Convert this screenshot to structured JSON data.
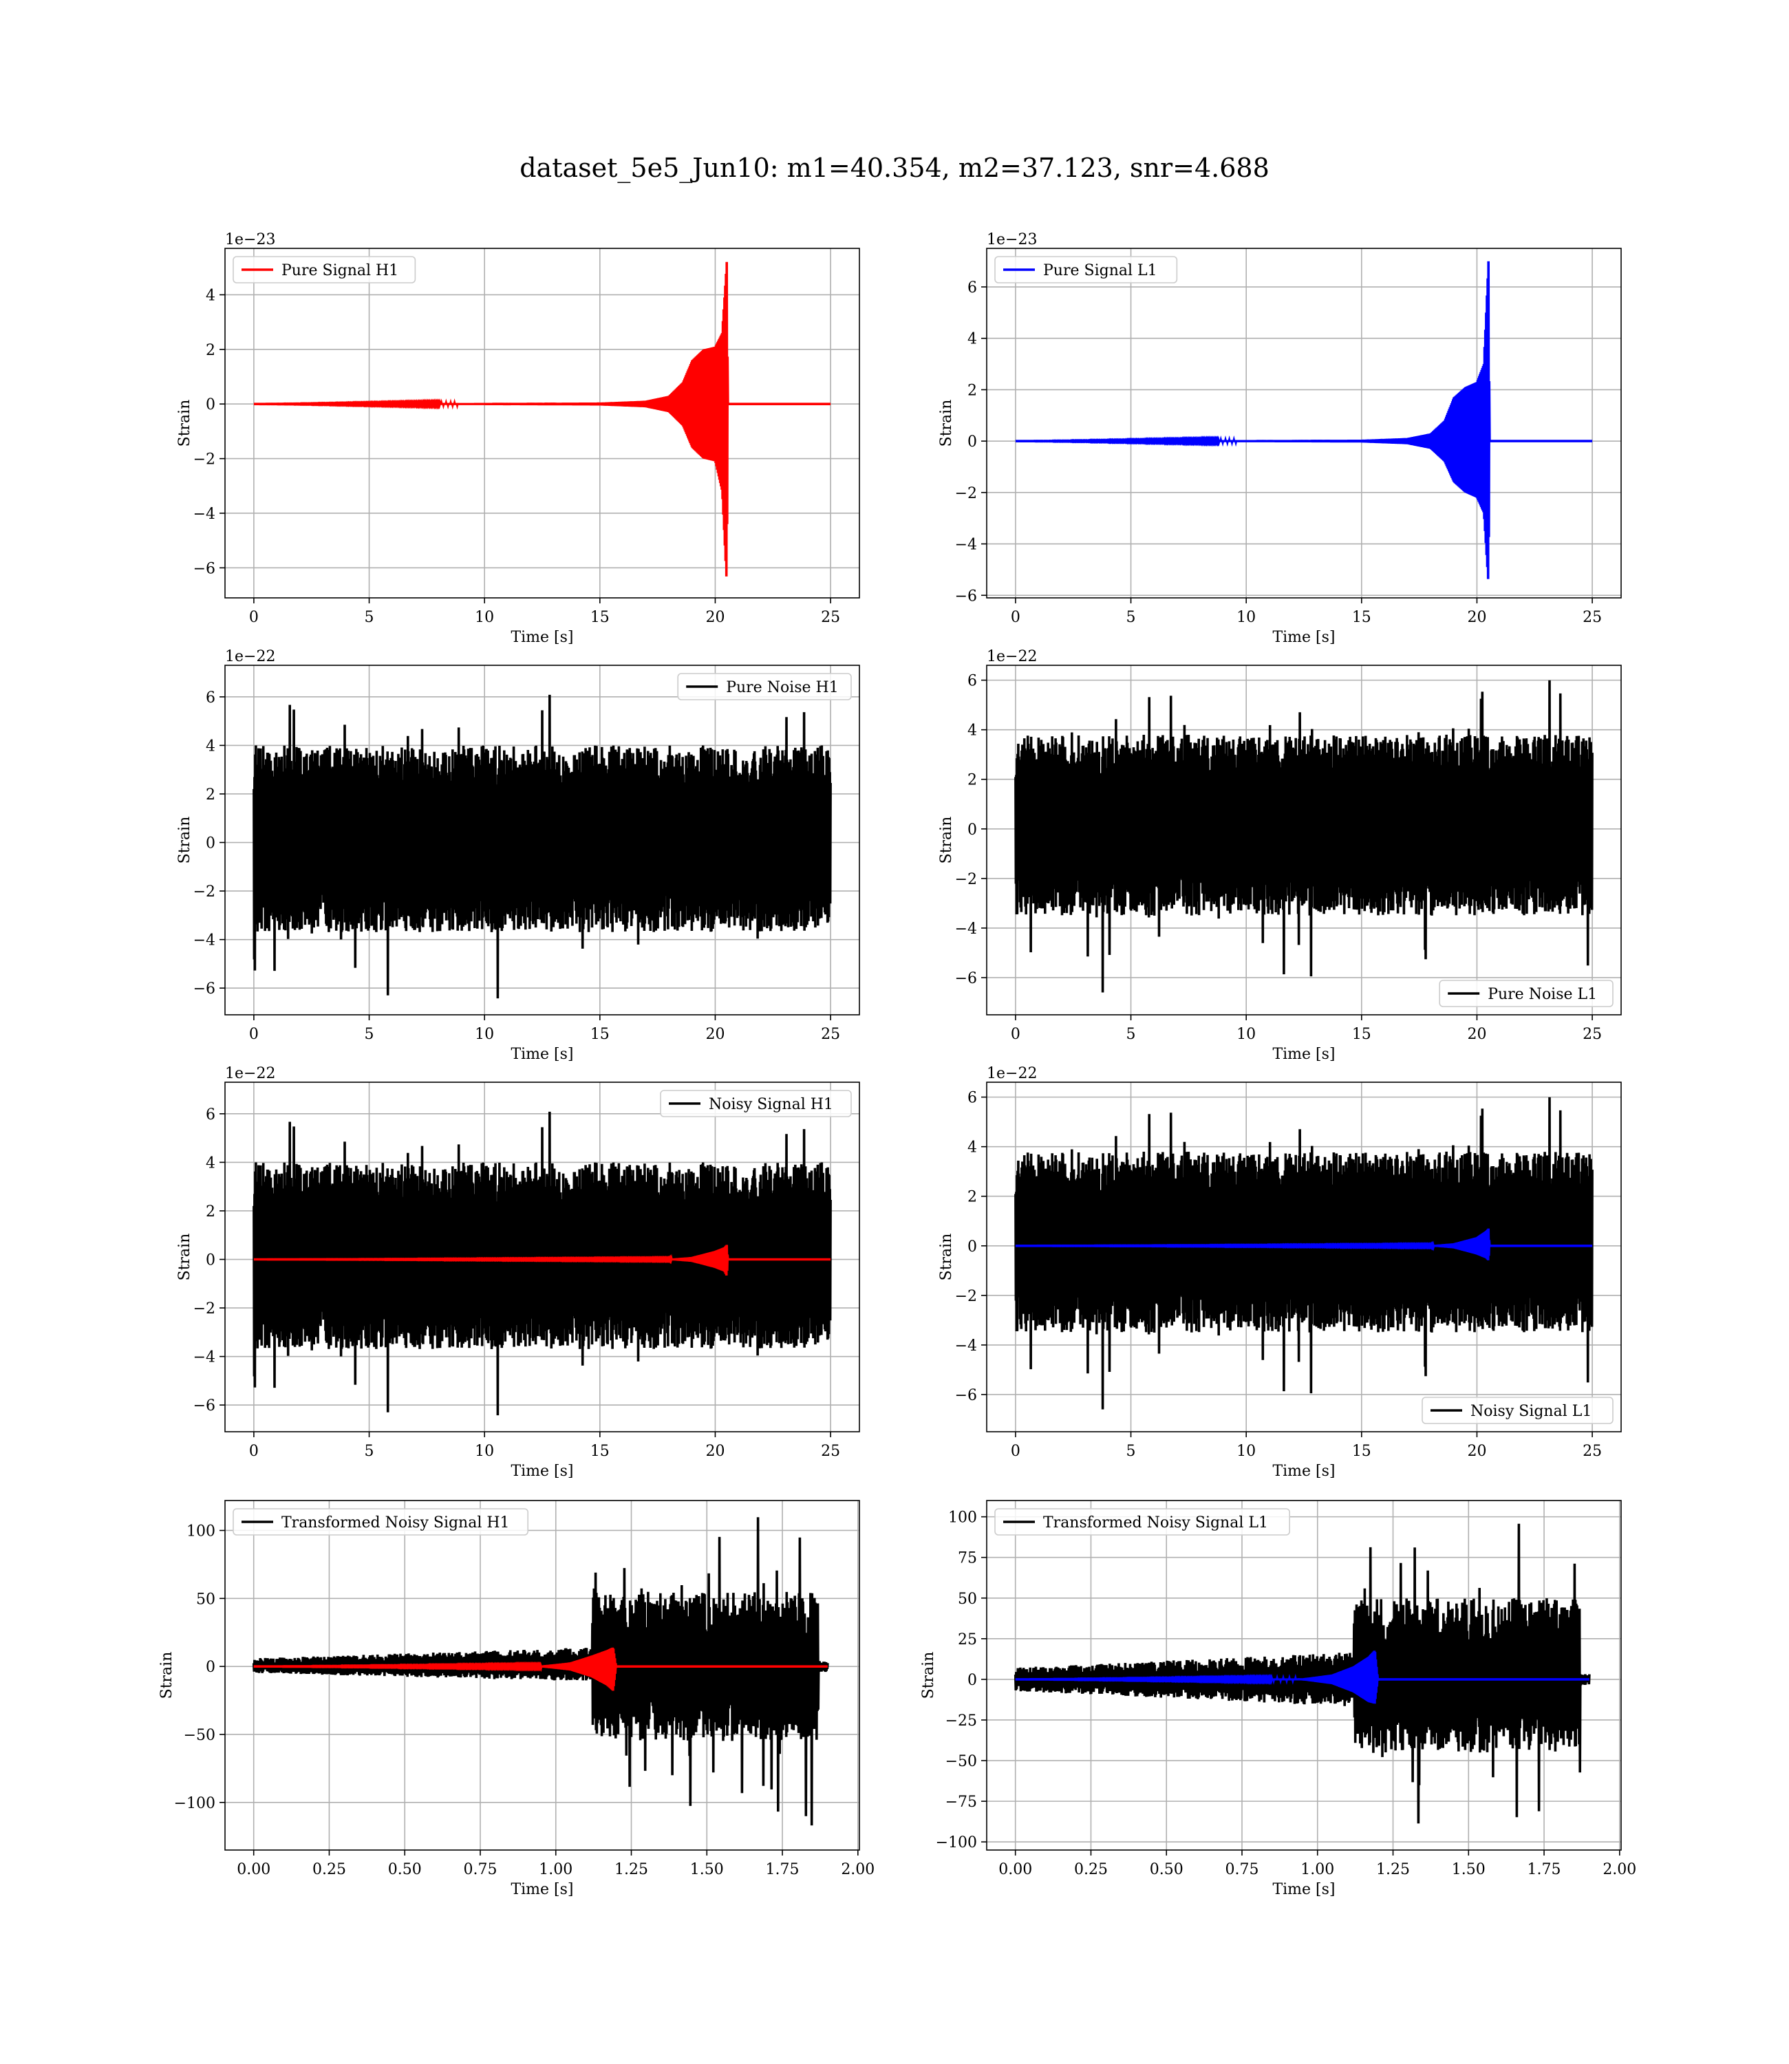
{
  "figure": {
    "title": "dataset_5e5_Jun10: m1=40.354, m2=37.123, snr=4.688"
  },
  "colors": {
    "h1_signal": "#ff0000",
    "l1_signal": "#0000ff",
    "noise": "#000000",
    "grid": "#b0b0b0"
  },
  "chart_data": [
    {
      "id": "pure-signal-h1",
      "type": "line",
      "xlabel": "Time [s]",
      "ylabel": "Strain",
      "offset_label": "1e−23",
      "xlim": [
        -1.25,
        26.25
      ],
      "ylim": [
        -7.1,
        5.7
      ],
      "xticks": [
        0,
        5,
        10,
        15,
        20,
        25
      ],
      "xtick_labels": [
        "0",
        "5",
        "10",
        "15",
        "20",
        "25"
      ],
      "yticks": [
        -6,
        -4,
        -2,
        0,
        2,
        4
      ],
      "ytick_labels": [
        "−6",
        "−4",
        "−2",
        "0",
        "2",
        "4"
      ],
      "legend": {
        "position": "upper left"
      },
      "series": [
        {
          "name": "Pure Signal H1",
          "color": "#ff0000",
          "kind": "chirp",
          "envelope_t": [
            0,
            15,
            17,
            18,
            18.6,
            19,
            19.5,
            20,
            20.3,
            20.5,
            20.55,
            25
          ],
          "envelope_max": [
            0.0,
            0.05,
            0.12,
            0.3,
            0.8,
            1.6,
            2.0,
            2.1,
            2.6,
            5.2,
            0.0,
            0.0
          ],
          "envelope_min": [
            0.0,
            -0.05,
            -0.12,
            -0.3,
            -0.8,
            -1.6,
            -2.0,
            -2.1,
            -3.2,
            -6.6,
            0.0,
            0.0
          ]
        }
      ]
    },
    {
      "id": "pure-signal-l1",
      "type": "line",
      "xlabel": "Time [s]",
      "ylabel": "Strain",
      "offset_label": "1e−23",
      "xlim": [
        -1.25,
        26.25
      ],
      "ylim": [
        -6.1,
        7.5
      ],
      "xticks": [
        0,
        5,
        10,
        15,
        20,
        25
      ],
      "xtick_labels": [
        "0",
        "5",
        "10",
        "15",
        "20",
        "25"
      ],
      "yticks": [
        -6,
        -4,
        -2,
        0,
        2,
        4,
        6
      ],
      "ytick_labels": [
        "−6",
        "−4",
        "−2",
        "0",
        "2",
        "4",
        "6"
      ],
      "legend": {
        "position": "upper left"
      },
      "series": [
        {
          "name": "Pure Signal L1",
          "color": "#0000ff",
          "kind": "chirp",
          "envelope_t": [
            0,
            15,
            17,
            18,
            18.6,
            19,
            19.5,
            20,
            20.3,
            20.5,
            20.55,
            25
          ],
          "envelope_max": [
            0.0,
            0.05,
            0.12,
            0.3,
            0.8,
            1.7,
            2.1,
            2.3,
            3.0,
            7.0,
            0.0,
            0.0
          ],
          "envelope_min": [
            0.0,
            -0.05,
            -0.12,
            -0.3,
            -0.8,
            -1.6,
            -2.0,
            -2.2,
            -2.8,
            -5.6,
            0.0,
            0.0
          ]
        }
      ]
    },
    {
      "id": "pure-noise-h1",
      "type": "line",
      "xlabel": "Time [s]",
      "ylabel": "Strain",
      "offset_label": "1e−22",
      "xlim": [
        -1.25,
        26.25
      ],
      "ylim": [
        -7.1,
        7.3
      ],
      "xticks": [
        0,
        5,
        10,
        15,
        20,
        25
      ],
      "xtick_labels": [
        "0",
        "5",
        "10",
        "15",
        "20",
        "25"
      ],
      "yticks": [
        -6,
        -4,
        -2,
        0,
        2,
        4,
        6
      ],
      "ytick_labels": [
        "−6",
        "−4",
        "−2",
        "0",
        "2",
        "4",
        "6"
      ],
      "legend": {
        "position": "upper right"
      },
      "series": [
        {
          "name": "Pure Noise H1",
          "color": "#000000",
          "kind": "noise",
          "t_range": [
            0,
            25
          ],
          "band": [
            -3.7,
            4.0
          ],
          "peak_max": 6.6,
          "peak_min": -6.5,
          "seed": 11
        }
      ]
    },
    {
      "id": "pure-noise-l1",
      "type": "line",
      "xlabel": "Time [s]",
      "ylabel": "Strain",
      "offset_label": "1e−22",
      "xlim": [
        -1.25,
        26.25
      ],
      "ylim": [
        -7.5,
        6.6
      ],
      "xticks": [
        0,
        5,
        10,
        15,
        20,
        25
      ],
      "xtick_labels": [
        "0",
        "5",
        "10",
        "15",
        "20",
        "25"
      ],
      "yticks": [
        -6,
        -4,
        -2,
        0,
        2,
        4,
        6
      ],
      "ytick_labels": [
        "−6",
        "−4",
        "−2",
        "0",
        "2",
        "4",
        "6"
      ],
      "legend": {
        "position": "lower right"
      },
      "series": [
        {
          "name": "Pure Noise L1",
          "color": "#000000",
          "kind": "noise",
          "t_range": [
            0,
            25
          ],
          "band": [
            -3.5,
            3.8
          ],
          "peak_max": 6.1,
          "peak_min": -6.9,
          "seed": 23
        }
      ]
    },
    {
      "id": "noisy-signal-h1",
      "type": "line",
      "xlabel": "Time [s]",
      "ylabel": "Strain",
      "offset_label": "1e−22",
      "xlim": [
        -1.25,
        26.25
      ],
      "ylim": [
        -7.1,
        7.3
      ],
      "xticks": [
        0,
        5,
        10,
        15,
        20,
        25
      ],
      "xtick_labels": [
        "0",
        "5",
        "10",
        "15",
        "20",
        "25"
      ],
      "yticks": [
        -6,
        -4,
        -2,
        0,
        2,
        4,
        6
      ],
      "ytick_labels": [
        "−6",
        "−4",
        "−2",
        "0",
        "2",
        "4",
        "6"
      ],
      "legend": {
        "position": "upper right"
      },
      "series": [
        {
          "name": "Noisy Signal H1",
          "color": "#000000",
          "kind": "noise",
          "t_range": [
            0,
            25
          ],
          "band": [
            -3.7,
            4.0
          ],
          "peak_max": 6.6,
          "peak_min": -6.5,
          "seed": 11
        },
        {
          "color": "#ff0000",
          "kind": "chirp",
          "envelope_t": [
            0,
            18,
            19,
            19.6,
            20,
            20.4,
            20.5,
            20.55,
            25
          ],
          "envelope_max": [
            0.0,
            0.02,
            0.1,
            0.25,
            0.35,
            0.5,
            0.6,
            0.0,
            0.0
          ],
          "envelope_min": [
            0.0,
            -0.02,
            -0.1,
            -0.25,
            -0.35,
            -0.5,
            -0.7,
            0.0,
            0.0
          ]
        }
      ]
    },
    {
      "id": "noisy-signal-l1",
      "type": "line",
      "xlabel": "Time [s]",
      "ylabel": "Strain",
      "offset_label": "1e−22",
      "xlim": [
        -1.25,
        26.25
      ],
      "ylim": [
        -7.5,
        6.6
      ],
      "xticks": [
        0,
        5,
        10,
        15,
        20,
        25
      ],
      "xtick_labels": [
        "0",
        "5",
        "10",
        "15",
        "20",
        "25"
      ],
      "yticks": [
        -6,
        -4,
        -2,
        0,
        2,
        4,
        6
      ],
      "ytick_labels": [
        "−6",
        "−4",
        "−2",
        "0",
        "2",
        "4",
        "6"
      ],
      "legend": {
        "position": "lower right"
      },
      "series": [
        {
          "name": "Noisy Signal L1",
          "color": "#000000",
          "kind": "noise",
          "t_range": [
            0,
            25
          ],
          "band": [
            -3.5,
            3.8
          ],
          "peak_max": 6.1,
          "peak_min": -6.9,
          "seed": 23
        },
        {
          "color": "#0000ff",
          "kind": "chirp",
          "envelope_t": [
            0,
            18,
            19,
            19.6,
            20,
            20.4,
            20.5,
            20.55,
            25
          ],
          "envelope_max": [
            0.0,
            0.02,
            0.1,
            0.25,
            0.35,
            0.6,
            0.7,
            0.0,
            0.0
          ],
          "envelope_min": [
            0.0,
            -0.02,
            -0.1,
            -0.25,
            -0.35,
            -0.5,
            -0.6,
            0.0,
            0.0
          ]
        }
      ]
    },
    {
      "id": "transformed-noisy-signal-h1",
      "type": "line",
      "xlabel": "Time [s]",
      "ylabel": "Strain",
      "offset_label": "",
      "xlim": [
        -0.095,
        2.005
      ],
      "ylim": [
        -135,
        122
      ],
      "xticks": [
        0,
        0.25,
        0.5,
        0.75,
        1.0,
        1.25,
        1.5,
        1.75,
        2.0
      ],
      "xtick_labels": [
        "0.00",
        "0.25",
        "0.50",
        "0.75",
        "1.00",
        "1.25",
        "1.50",
        "1.75",
        "2.00"
      ],
      "yticks": [
        -100,
        -50,
        0,
        50,
        100
      ],
      "ytick_labels": [
        "−100",
        "−50",
        "0",
        "50",
        "100"
      ],
      "legend": {
        "position": "upper left"
      },
      "series": [
        {
          "name": "Transformed Noisy Signal H1",
          "color": "#000000",
          "kind": "transformed",
          "t_range": [
            0,
            1.9
          ],
          "jump_t": 1.12,
          "cut_t": 1.87,
          "low_band": [
            -8,
            10
          ],
          "high_band": [
            -55,
            55
          ],
          "peak_max": 110,
          "peak_min": -123,
          "seed": 41
        },
        {
          "color": "#ff0000",
          "kind": "chirp",
          "envelope_t": [
            0,
            0.95,
            1.05,
            1.12,
            1.17,
            1.19,
            1.2,
            1.9
          ],
          "envelope_max": [
            0.0,
            0.5,
            3.0,
            8.0,
            12.0,
            14.0,
            0.0,
            0.0
          ],
          "envelope_min": [
            0.0,
            -0.5,
            -3.0,
            -8.0,
            -14.0,
            -18.0,
            0.0,
            0.0
          ]
        }
      ]
    },
    {
      "id": "transformed-noisy-signal-l1",
      "type": "line",
      "xlabel": "Time [s]",
      "ylabel": "Strain",
      "offset_label": "",
      "xlim": [
        -0.095,
        2.005
      ],
      "ylim": [
        -105,
        110
      ],
      "xticks": [
        0,
        0.25,
        0.5,
        0.75,
        1.0,
        1.25,
        1.5,
        1.75,
        2.0
      ],
      "xtick_labels": [
        "0.00",
        "0.25",
        "0.50",
        "0.75",
        "1.00",
        "1.25",
        "1.50",
        "1.75",
        "2.00"
      ],
      "yticks": [
        -100,
        -75,
        -50,
        -25,
        0,
        25,
        50,
        75,
        100
      ],
      "ytick_labels": [
        "−100",
        "−75",
        "−50",
        "−25",
        "0",
        "25",
        "50",
        "75",
        "100"
      ],
      "legend": {
        "position": "upper left"
      },
      "series": [
        {
          "name": "Transformed Noisy Signal L1",
          "color": "#000000",
          "kind": "transformed",
          "t_range": [
            0,
            1.9
          ],
          "jump_t": 1.12,
          "cut_t": 1.87,
          "low_band": [
            -12,
            12
          ],
          "high_band": [
            -45,
            50
          ],
          "peak_max": 100,
          "peak_min": -97,
          "seed": 57
        },
        {
          "color": "#0000ff",
          "kind": "chirp",
          "envelope_t": [
            0,
            0.95,
            1.05,
            1.12,
            1.17,
            1.19,
            1.2,
            1.9
          ],
          "envelope_max": [
            0.0,
            0.5,
            3.0,
            8.0,
            14.0,
            18.0,
            0.0,
            0.0
          ],
          "envelope_min": [
            0.0,
            -0.5,
            -3.0,
            -8.0,
            -14.0,
            -15.0,
            0.0,
            0.0
          ]
        }
      ]
    }
  ]
}
